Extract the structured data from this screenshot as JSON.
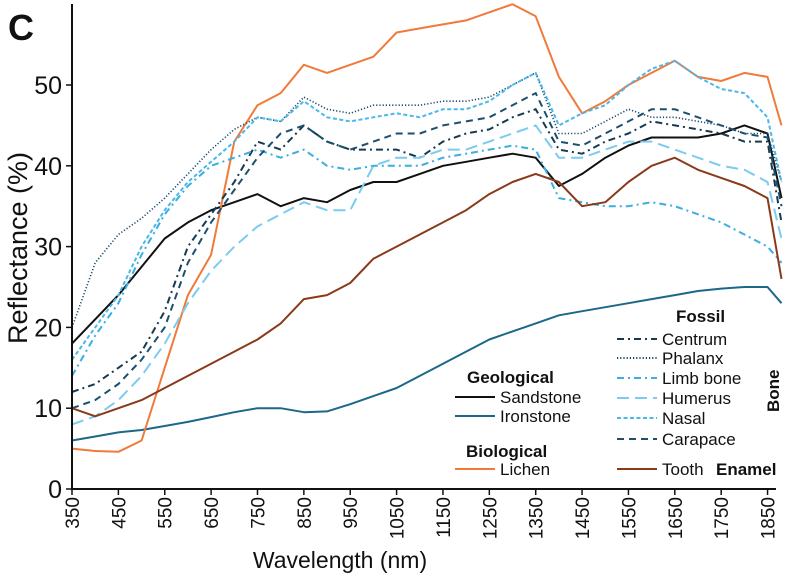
{
  "panel_label": "C",
  "chart_data": {
    "type": "line",
    "xlabel": "Wavelength (nm)",
    "ylabel": "Reflectance (%)",
    "xlim": [
      350,
      1900
    ],
    "ylim": [
      0,
      60
    ],
    "xticks": [
      350,
      450,
      550,
      650,
      750,
      850,
      950,
      1050,
      1150,
      1250,
      1350,
      1450,
      1550,
      1650,
      1750,
      1850
    ],
    "yticks": [
      0,
      10,
      20,
      30,
      40,
      50
    ],
    "grid": false,
    "legend_placement": "bottom-right",
    "x": [
      350,
      400,
      450,
      500,
      550,
      600,
      650,
      700,
      750,
      800,
      850,
      900,
      950,
      1000,
      1050,
      1100,
      1150,
      1200,
      1250,
      1300,
      1350,
      1400,
      1450,
      1500,
      1550,
      1600,
      1650,
      1700,
      1750,
      1800,
      1850,
      1880
    ],
    "series": [
      {
        "name": "Sandstone",
        "group": "Geological",
        "color": "#111111",
        "dash": "solid",
        "values": [
          18,
          21,
          24,
          27.5,
          31,
          33,
          34.5,
          35.5,
          36.5,
          35,
          36,
          35.5,
          37,
          38,
          38,
          39,
          40,
          40.5,
          41,
          41.5,
          41,
          37.5,
          39,
          41,
          42.5,
          43.5,
          43.5,
          43.5,
          44,
          45,
          44,
          36
        ]
      },
      {
        "name": "Ironstone",
        "group": "Geological",
        "color": "#1b6889",
        "dash": "solid",
        "values": [
          6,
          6.5,
          7,
          7.3,
          7.8,
          8.3,
          8.9,
          9.5,
          10,
          10,
          9.5,
          9.6,
          10.5,
          11.5,
          12.5,
          14,
          15.5,
          17,
          18.5,
          19.5,
          20.5,
          21.5,
          22,
          22.5,
          23,
          23.5,
          24,
          24.5,
          24.8,
          25,
          25,
          23
        ]
      },
      {
        "name": "Lichen",
        "group": "Biological",
        "color": "#f07a3a",
        "dash": "solid",
        "values": [
          5,
          4.7,
          4.6,
          6,
          15,
          24,
          29,
          43,
          47.5,
          49,
          52.5,
          51.5,
          52.5,
          53.5,
          56.5,
          57,
          57.5,
          58,
          59,
          60,
          58.5,
          51,
          46.5,
          48,
          50,
          51.5,
          53,
          51,
          50.5,
          51.5,
          51,
          45
        ]
      },
      {
        "name": "Centrum",
        "group": "Fossil Bone",
        "color": "#163a50",
        "dash": "dashdot",
        "values": [
          12,
          13,
          15,
          17,
          22,
          30,
          34,
          38,
          43,
          42,
          45,
          43,
          42,
          42,
          42,
          41,
          43,
          44,
          44.5,
          46,
          47,
          42,
          41.5,
          43,
          44,
          45.5,
          45,
          44.5,
          44,
          43,
          43,
          33
        ]
      },
      {
        "name": "Phalanx",
        "group": "Fossil Bone",
        "color": "#1a4a6a",
        "dash": "dotted",
        "values": [
          20,
          28,
          31.5,
          33.5,
          36,
          39,
          42,
          44.5,
          46,
          45.5,
          48.5,
          47,
          46.5,
          47.5,
          47.5,
          47.5,
          48,
          48,
          48.5,
          50,
          51.5,
          44,
          44,
          45.5,
          47,
          46,
          46,
          45.5,
          45,
          44,
          44,
          38
        ]
      },
      {
        "name": "Limb bone",
        "group": "Fossil Bone",
        "color": "#3aaee0",
        "dash": "dashdot",
        "values": [
          14,
          19,
          23,
          29,
          34,
          37.5,
          40,
          41,
          42,
          41,
          42,
          40,
          39.5,
          40,
          40,
          40,
          41,
          41.5,
          42,
          42.5,
          42,
          36,
          35.5,
          35,
          35,
          35.5,
          35,
          34,
          33,
          31.5,
          30,
          28
        ]
      },
      {
        "name": "Humerus",
        "group": "Fossil Bone",
        "color": "#7ccbf0",
        "dash": "longdash",
        "values": [
          8,
          9,
          11,
          14,
          18,
          23,
          27,
          30,
          32.5,
          34,
          35.5,
          34.5,
          34.5,
          40,
          41,
          41,
          42,
          42,
          43,
          44,
          45,
          41,
          41,
          42,
          43,
          43,
          42,
          41,
          40,
          39.5,
          38,
          31
        ]
      },
      {
        "name": "Nasal",
        "group": "Fossil Bone",
        "color": "#4ab8e8",
        "dash": "shortdash",
        "values": [
          16,
          20,
          24,
          30,
          34.5,
          38,
          40.5,
          43,
          46,
          45.5,
          48,
          46,
          45.5,
          46,
          46.5,
          46,
          47,
          47,
          48,
          50,
          51.5,
          45,
          46.5,
          47.5,
          50,
          52,
          53,
          51,
          49.5,
          49,
          46,
          38
        ]
      },
      {
        "name": "Carapace",
        "group": "Fossil Bone",
        "color": "#1e4f6e",
        "dash": "dash",
        "values": [
          10,
          11,
          13,
          16,
          20,
          28,
          33,
          37,
          41,
          44,
          45,
          43,
          42,
          43,
          44,
          44,
          45,
          45.5,
          46,
          47.5,
          49,
          43,
          42.5,
          44,
          45.5,
          47,
          47,
          46,
          45,
          44,
          43.5,
          35
        ]
      },
      {
        "name": "Tooth",
        "group": "Fossil Enamel",
        "color": "#8a3a1a",
        "dash": "solid",
        "values": [
          10,
          9,
          10,
          11,
          12.5,
          14,
          15.5,
          17,
          18.5,
          20.5,
          23.5,
          24,
          25.5,
          28.5,
          30,
          31.5,
          33,
          34.5,
          36.5,
          38,
          39,
          38,
          35,
          35.5,
          38,
          40,
          41,
          39.5,
          38.5,
          37.5,
          36,
          26
        ]
      }
    ]
  },
  "legend": {
    "geological_title": "Geological",
    "biological_title": "Biological",
    "fossil_title": "Fossil",
    "bone_label": "Bone",
    "enamel_label": "Enamel"
  }
}
